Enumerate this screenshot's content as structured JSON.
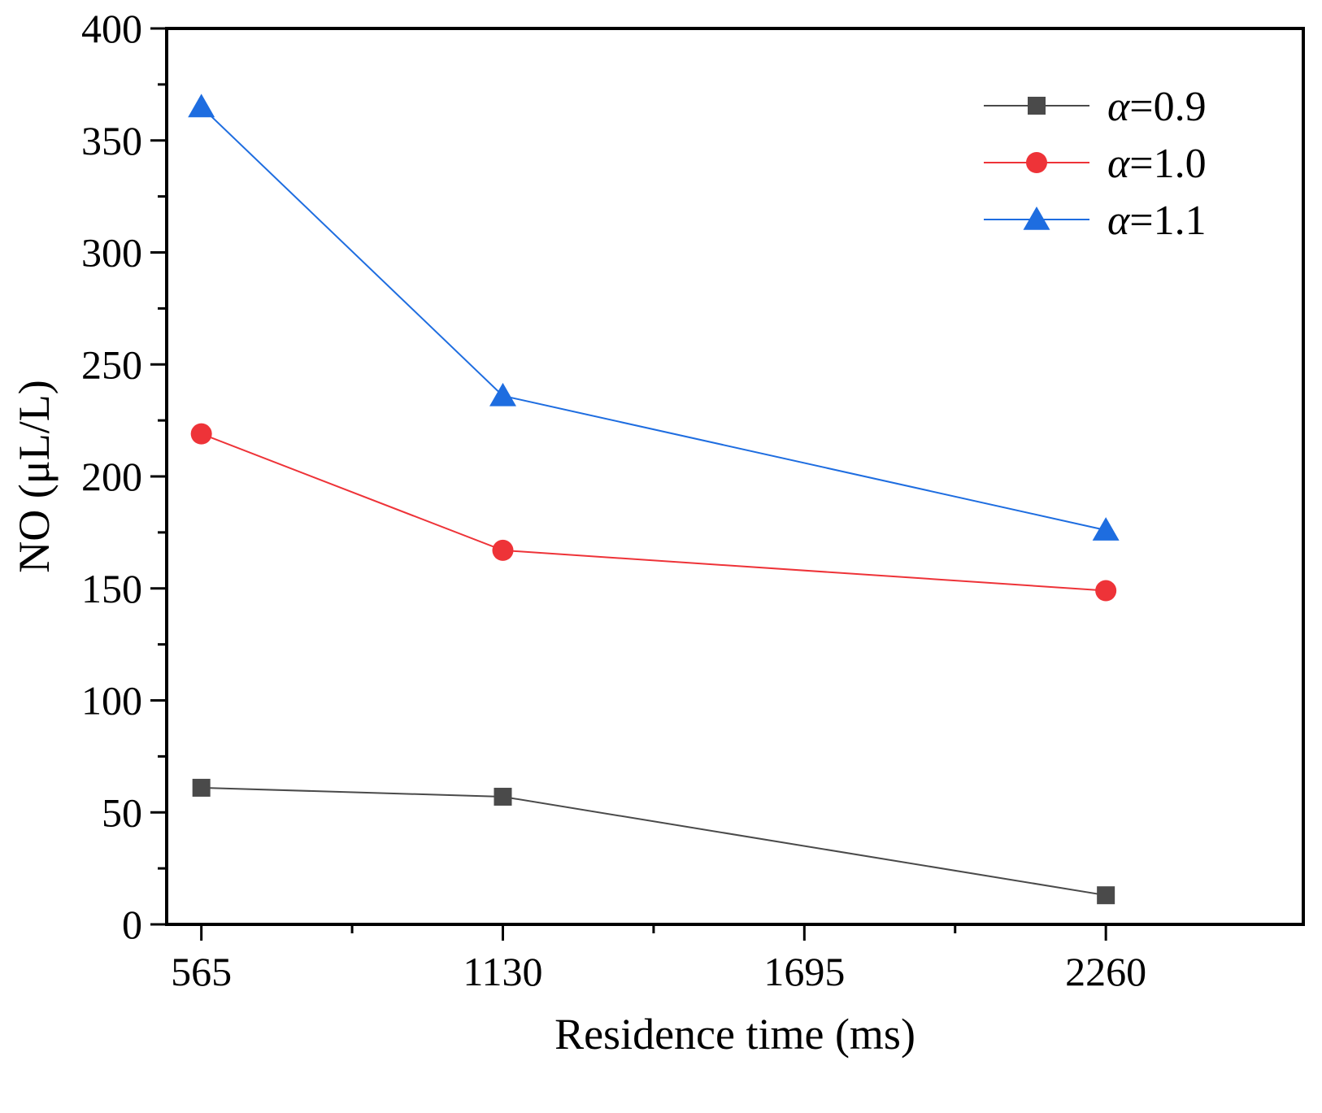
{
  "chart_data": {
    "type": "line",
    "title": "",
    "xlabel": "Residence time (ms)",
    "ylabel": "NO (μL/L)",
    "x": [
      565,
      1130,
      2260
    ],
    "xticks": [
      565,
      1130,
      1695,
      2260
    ],
    "xtick_labels": [
      "565",
      "1130",
      "1695",
      "2260"
    ],
    "xlim": [
      500,
      2630
    ],
    "ylim": [
      0,
      400
    ],
    "yticks": [
      0,
      50,
      100,
      150,
      200,
      250,
      300,
      350,
      400
    ],
    "ytick_labels": [
      "0",
      "50",
      "100",
      "150",
      "200",
      "250",
      "300",
      "350",
      "400"
    ],
    "grid": false,
    "legend_position": "top-right",
    "series": [
      {
        "name": "α=0.9",
        "symbol": "α",
        "value_text": "=0.9",
        "marker": "square",
        "color": "#4a4a4a",
        "values": [
          61,
          57,
          13
        ]
      },
      {
        "name": "α=1.0",
        "symbol": "α",
        "value_text": "=1.0",
        "marker": "circle",
        "color": "#ee3338",
        "values": [
          219,
          167,
          149
        ]
      },
      {
        "name": "α=1.1",
        "symbol": "α",
        "value_text": "=1.1",
        "marker": "triangle",
        "color": "#1e6de0",
        "values": [
          365,
          236,
          176
        ]
      }
    ]
  }
}
